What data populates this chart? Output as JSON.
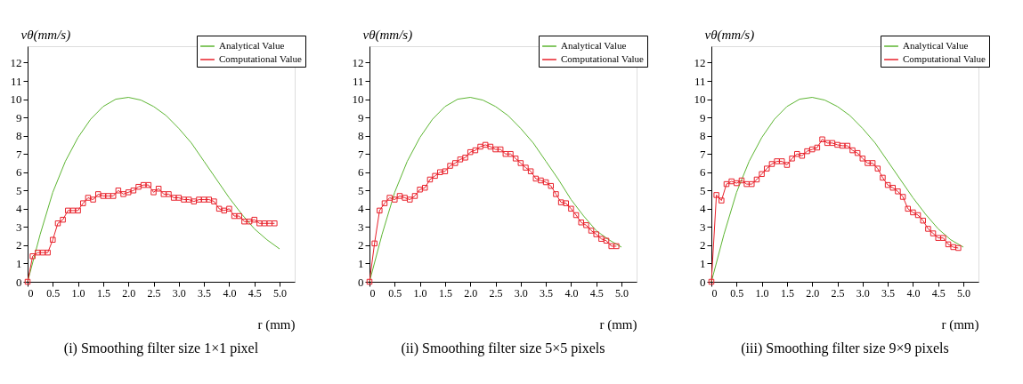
{
  "chart_data": [
    {
      "type": "line",
      "title": "(i) Smoothing filter size 1×1 pixel",
      "xlabel": "r (mm)",
      "ylabel": "vθ(mm/s)",
      "xlim": [
        0,
        5.3
      ],
      "ylim": [
        0,
        12.9
      ],
      "xticks": [
        0,
        0.5,
        {
          "value": 1,
          "label": "1.0"
        },
        1.5,
        {
          "value": 2,
          "label": "2.0"
        },
        2.5,
        {
          "value": 3,
          "label": "3.0"
        },
        3.5,
        {
          "value": 4,
          "label": "4.0"
        },
        4.5,
        {
          "value": 5,
          "label": "5.0"
        }
      ],
      "yticks": [
        0,
        1,
        2,
        3,
        4,
        5,
        6,
        7,
        8,
        9,
        10,
        11,
        12
      ],
      "grid": false,
      "legend": "top right",
      "line_style": "solid",
      "series": [
        {
          "name": "Analytical Value",
          "color": "#5cb531",
          "marker": "none",
          "x": [
            0,
            0.25,
            0.5,
            0.75,
            1,
            1.25,
            1.5,
            1.75,
            2,
            2.25,
            2.5,
            2.75,
            3,
            3.25,
            3.5,
            3.75,
            4,
            4.25,
            4.5,
            4.75,
            5
          ],
          "values": [
            0,
            2.6,
            4.9,
            6.6,
            7.9,
            8.9,
            9.6,
            10,
            10.1,
            9.95,
            9.6,
            9.1,
            8.4,
            7.6,
            6.6,
            5.6,
            4.6,
            3.7,
            2.9,
            2.3,
            1.8
          ]
        },
        {
          "name": "Computational Value",
          "color": "#e8202a",
          "marker": "square",
          "x": [
            0,
            0.1,
            0.2,
            0.3,
            0.4,
            0.5,
            0.6,
            0.7,
            0.8,
            0.9,
            1,
            1.1,
            1.2,
            1.3,
            1.4,
            1.5,
            1.6,
            1.7,
            1.8,
            1.9,
            2,
            2.1,
            2.2,
            2.3,
            2.4,
            2.5,
            2.6,
            2.7,
            2.8,
            2.9,
            3,
            3.1,
            3.2,
            3.3,
            3.4,
            3.5,
            3.6,
            3.7,
            3.8,
            3.9,
            4,
            4.1,
            4.2,
            4.3,
            4.4,
            4.5,
            4.6,
            4.7,
            4.8,
            4.9
          ],
          "values": [
            0,
            1.4,
            1.6,
            1.6,
            1.6,
            2.3,
            3.2,
            3.4,
            3.9,
            3.9,
            3.9,
            4.3,
            4.6,
            4.5,
            4.8,
            4.7,
            4.7,
            4.7,
            5.0,
            4.8,
            4.9,
            5.0,
            5.2,
            5.3,
            5.3,
            4.9,
            5.1,
            4.8,
            4.8,
            4.6,
            4.6,
            4.5,
            4.5,
            4.4,
            4.5,
            4.5,
            4.5,
            4.4,
            4.0,
            3.9,
            4.0,
            3.6,
            3.6,
            3.3,
            3.3,
            3.4,
            3.2,
            3.2,
            3.2,
            3.2
          ]
        }
      ]
    },
    {
      "type": "line",
      "title": "(ii) Smoothing filter size 5×5 pixels",
      "xlabel": "r (mm)",
      "ylabel": "vθ(mm/s)",
      "xlim": [
        0,
        5.3
      ],
      "ylim": [
        0,
        12.9
      ],
      "xticks": [
        0,
        0.5,
        {
          "value": 1,
          "label": "1.0"
        },
        1.5,
        {
          "value": 2,
          "label": "2.0"
        },
        2.5,
        {
          "value": 3,
          "label": "3.0"
        },
        3.5,
        {
          "value": 4,
          "label": "4.0"
        },
        4.5,
        {
          "value": 5,
          "label": "5.0"
        }
      ],
      "yticks": [
        0,
        1,
        2,
        3,
        4,
        5,
        6,
        7,
        8,
        9,
        10,
        11,
        12
      ],
      "grid": false,
      "legend": "top right",
      "line_style": "solid",
      "series": [
        {
          "name": "Analytical Value",
          "color": "#5cb531",
          "marker": "none",
          "x": [
            0,
            0.25,
            0.5,
            0.75,
            1,
            1.25,
            1.5,
            1.75,
            2,
            2.25,
            2.5,
            2.75,
            3,
            3.25,
            3.5,
            3.75,
            4,
            4.25,
            4.5,
            4.75,
            5
          ],
          "values": [
            0,
            2.6,
            4.9,
            6.6,
            7.9,
            8.9,
            9.6,
            10,
            10.1,
            9.95,
            9.6,
            9.1,
            8.4,
            7.6,
            6.6,
            5.6,
            4.5,
            3.6,
            2.8,
            2.3,
            1.9
          ]
        },
        {
          "name": "Computational Value",
          "color": "#e8202a",
          "marker": "square",
          "x": [
            0,
            0.1,
            0.2,
            0.3,
            0.4,
            0.5,
            0.6,
            0.7,
            0.8,
            0.9,
            1,
            1.1,
            1.2,
            1.3,
            1.4,
            1.5,
            1.6,
            1.7,
            1.8,
            1.9,
            2,
            2.1,
            2.2,
            2.3,
            2.4,
            2.5,
            2.6,
            2.7,
            2.8,
            2.9,
            3,
            3.1,
            3.2,
            3.3,
            3.4,
            3.5,
            3.6,
            3.7,
            3.8,
            3.9,
            4,
            4.1,
            4.2,
            4.3,
            4.4,
            4.5,
            4.6,
            4.7,
            4.8,
            4.9
          ],
          "values": [
            0,
            2.1,
            3.9,
            4.3,
            4.6,
            4.5,
            4.7,
            4.6,
            4.5,
            4.7,
            5.05,
            5.15,
            5.6,
            5.8,
            6.0,
            6.05,
            6.35,
            6.5,
            6.7,
            6.8,
            7.1,
            7.2,
            7.4,
            7.5,
            7.4,
            7.25,
            7.25,
            7.0,
            7.0,
            6.75,
            6.5,
            6.25,
            6.05,
            5.65,
            5.55,
            5.45,
            5.25,
            4.8,
            4.35,
            4.3,
            4.0,
            3.65,
            3.25,
            3.1,
            2.8,
            2.6,
            2.35,
            2.25,
            1.95,
            1.95
          ]
        }
      ]
    },
    {
      "type": "line",
      "title": "(iii) Smoothing filter size 9×9 pixels",
      "xlabel": "r (mm)",
      "ylabel": "vθ(mm/s)",
      "xlim": [
        0,
        5.3
      ],
      "ylim": [
        0,
        12.9
      ],
      "xticks": [
        0,
        0.5,
        {
          "value": 1,
          "label": "1.0"
        },
        1.5,
        {
          "value": 2,
          "label": "2.0"
        },
        2.5,
        {
          "value": 3,
          "label": "3.0"
        },
        3.5,
        {
          "value": 4,
          "label": "4.0"
        },
        4.5,
        {
          "value": 5,
          "label": "5.0"
        }
      ],
      "yticks": [
        0,
        1,
        2,
        3,
        4,
        5,
        6,
        7,
        8,
        9,
        10,
        11,
        12
      ],
      "grid": false,
      "legend": "top right",
      "line_style": "solid",
      "series": [
        {
          "name": "Analytical Value",
          "color": "#5cb531",
          "marker": "none",
          "x": [
            0,
            0.25,
            0.5,
            0.75,
            1,
            1.25,
            1.5,
            1.75,
            2,
            2.25,
            2.5,
            2.75,
            3,
            3.25,
            3.5,
            3.75,
            4,
            4.25,
            4.5,
            4.75,
            5
          ],
          "values": [
            0,
            2.6,
            4.9,
            6.6,
            7.9,
            8.9,
            9.6,
            10,
            10.1,
            9.95,
            9.6,
            9.1,
            8.4,
            7.6,
            6.6,
            5.6,
            4.6,
            3.7,
            2.9,
            2.3,
            1.9
          ]
        },
        {
          "name": "Computational Value",
          "color": "#e8202a",
          "marker": "square",
          "x": [
            0,
            0.1,
            0.2,
            0.3,
            0.4,
            0.5,
            0.6,
            0.7,
            0.8,
            0.9,
            1,
            1.1,
            1.2,
            1.3,
            1.4,
            1.5,
            1.6,
            1.7,
            1.8,
            1.9,
            2,
            2.1,
            2.2,
            2.3,
            2.4,
            2.5,
            2.6,
            2.7,
            2.8,
            2.9,
            3,
            3.1,
            3.2,
            3.3,
            3.4,
            3.5,
            3.6,
            3.7,
            3.8,
            3.9,
            4,
            4.1,
            4.2,
            4.3,
            4.4,
            4.5,
            4.6,
            4.7,
            4.8,
            4.9
          ],
          "values": [
            0,
            4.75,
            4.45,
            5.35,
            5.5,
            5.4,
            5.55,
            5.35,
            5.35,
            5.6,
            5.9,
            6.2,
            6.45,
            6.6,
            6.6,
            6.4,
            6.75,
            7.0,
            6.9,
            7.15,
            7.25,
            7.35,
            7.8,
            7.6,
            7.6,
            7.5,
            7.45,
            7.45,
            7.2,
            7.05,
            6.75,
            6.5,
            6.5,
            6.2,
            5.7,
            5.3,
            5.15,
            4.95,
            4.65,
            4.0,
            3.8,
            3.65,
            3.35,
            2.9,
            2.65,
            2.4,
            2.4,
            2.05,
            1.9,
            1.85
          ]
        }
      ]
    }
  ]
}
